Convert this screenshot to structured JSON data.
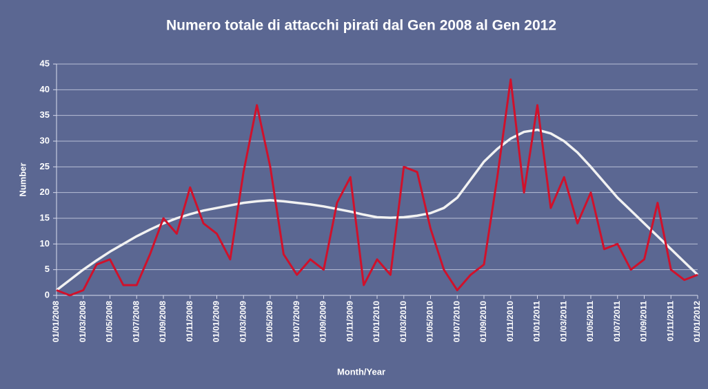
{
  "chart_data": {
    "type": "line",
    "title": "Numero totale di attacchi pirati dal Gen 2008  al Gen 2012",
    "x_label": "Month/Year",
    "y_label": "Number",
    "categories": [
      "01/01/2008",
      null,
      "01/03/2008",
      null,
      "01/05/2008",
      null,
      "01/07/2008",
      null,
      "01/09/2008",
      null,
      "01/11/2008",
      null,
      "01/01/2009",
      null,
      "01/03/2009",
      null,
      "01/05/2009",
      null,
      "01/07/2009",
      null,
      "01/09/2009",
      null,
      "01/11/2009",
      null,
      "01/01/2010",
      null,
      "01/03/2010",
      null,
      "01/05/2010",
      null,
      "01/07/2010",
      null,
      "01/09/2010",
      null,
      "01/11/2010",
      null,
      "01/01/2011",
      null,
      "01/03/2011",
      null,
      "01/05/2011",
      null,
      "01/07/2011",
      null,
      "01/09/2011",
      null,
      "01/11/2011",
      null,
      "01/01/2012"
    ],
    "series": [
      {
        "color": "#d0112b",
        "values": [
          1,
          0,
          1,
          6,
          7,
          2,
          2,
          8,
          15,
          12,
          21,
          14,
          12,
          7,
          24,
          37,
          25,
          8,
          4,
          7,
          5,
          18,
          23,
          2,
          7,
          4,
          25,
          24,
          13,
          5,
          1,
          4,
          6,
          23,
          42,
          20,
          37,
          17,
          23,
          14,
          20,
          9,
          10,
          5,
          7,
          18,
          5,
          3,
          4
        ]
      },
      {
        "color": "#f2f2f2",
        "values": [
          1,
          3,
          5,
          6.8,
          8.5,
          10,
          11.5,
          12.8,
          14,
          15,
          15.8,
          16.5,
          17,
          17.5,
          18,
          18.3,
          18.5,
          18.3,
          18,
          17.7,
          17.3,
          16.8,
          16.3,
          15.7,
          15.2,
          15.1,
          15.2,
          15.5,
          16,
          17,
          19,
          22.5,
          26,
          28.5,
          30.5,
          31.8,
          32.2,
          31.5,
          30,
          27.8,
          25,
          22,
          19,
          16.5,
          14,
          11.5,
          9,
          6.5,
          4
        ]
      }
    ],
    "ylim": [
      0,
      45
    ],
    "yticks": [
      0,
      5,
      10,
      15,
      20,
      25,
      30,
      35,
      40,
      45
    ],
    "grid": true
  }
}
